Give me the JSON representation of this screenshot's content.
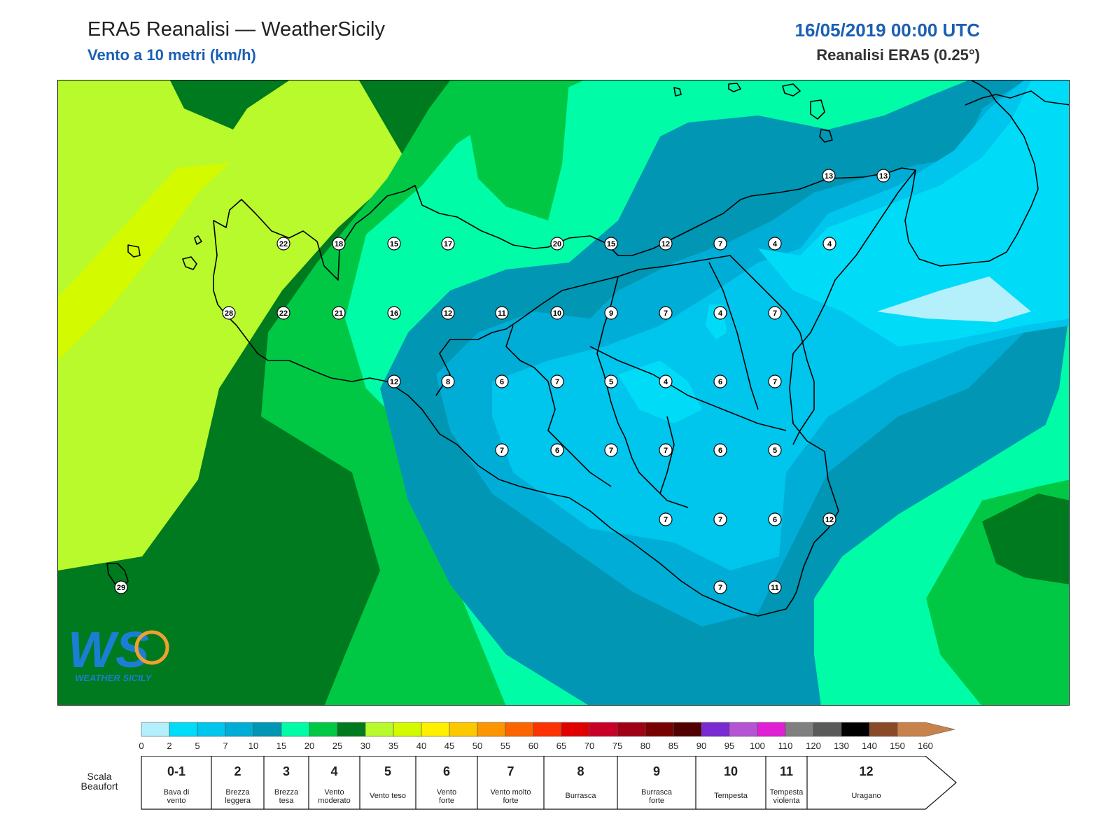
{
  "header": {
    "title": "ERA5 Reanalisi — WeatherSicily",
    "subtitle": "Vento a 10 metri (km/h)",
    "datetime": "16/05/2019 00:00 UTC",
    "resolution": "Reanalisi ERA5 (0.25°)"
  },
  "logo": {
    "text": "WEATHER SICILY",
    "monogram": "WS"
  },
  "stations": {
    "values": [
      13,
      13,
      22,
      18,
      15,
      17,
      20,
      15,
      12,
      7,
      4,
      4,
      28,
      22,
      21,
      16,
      12,
      11,
      10,
      9,
      7,
      4,
      7,
      12,
      8,
      6,
      7,
      5,
      4,
      6,
      7,
      7,
      6,
      7,
      7,
      6,
      5,
      7,
      7,
      6,
      12,
      29,
      7,
      11
    ]
  },
  "colorbar": {
    "ticks": [
      "0",
      "2",
      "5",
      "7",
      "10",
      "15",
      "20",
      "25",
      "30",
      "35",
      "40",
      "45",
      "50",
      "55",
      "60",
      "65",
      "70",
      "75",
      "80",
      "85",
      "90",
      "95",
      "100",
      "110",
      "120",
      "130",
      "140",
      "150",
      "160"
    ],
    "colors": [
      "#b3f0fc",
      "#00dcf8",
      "#00c5ed",
      "#00add6",
      "#0096b4",
      "#00fca6",
      "#00c844",
      "#007a1e",
      "#b8fa2c",
      "#d4fa00",
      "#fff000",
      "#fcc800",
      "#fc9600",
      "#fc6400",
      "#fc3200",
      "#e00000",
      "#c80028",
      "#a00014",
      "#780000",
      "#500000",
      "#7a2ad2",
      "#b454d4",
      "#e01ed4",
      "#808080",
      "#5a5a5a",
      "#000000",
      "#8a4a28",
      "#c8824c"
    ]
  },
  "beaufort": {
    "title_line1": "Scala",
    "title_line2": "Beaufort",
    "classes": [
      {
        "num": "0-1",
        "l1": "Bava di",
        "l2": "vento"
      },
      {
        "num": "2",
        "l1": "Brezza",
        "l2": "leggera"
      },
      {
        "num": "3",
        "l1": "Brezza",
        "l2": "tesa"
      },
      {
        "num": "4",
        "l1": "Vento",
        "l2": "moderato"
      },
      {
        "num": "5",
        "l1": "Vento teso",
        "l2": ""
      },
      {
        "num": "6",
        "l1": "Vento",
        "l2": "forte"
      },
      {
        "num": "7",
        "l1": "Vento molto",
        "l2": "forte"
      },
      {
        "num": "8",
        "l1": "Burrasca",
        "l2": ""
      },
      {
        "num": "9",
        "l1": "Burrasca",
        "l2": "forte"
      },
      {
        "num": "10",
        "l1": "Tempesta",
        "l2": ""
      },
      {
        "num": "11",
        "l1": "Tempesta",
        "l2": "violenta"
      },
      {
        "num": "12",
        "l1": "Uragano",
        "l2": ""
      }
    ]
  }
}
